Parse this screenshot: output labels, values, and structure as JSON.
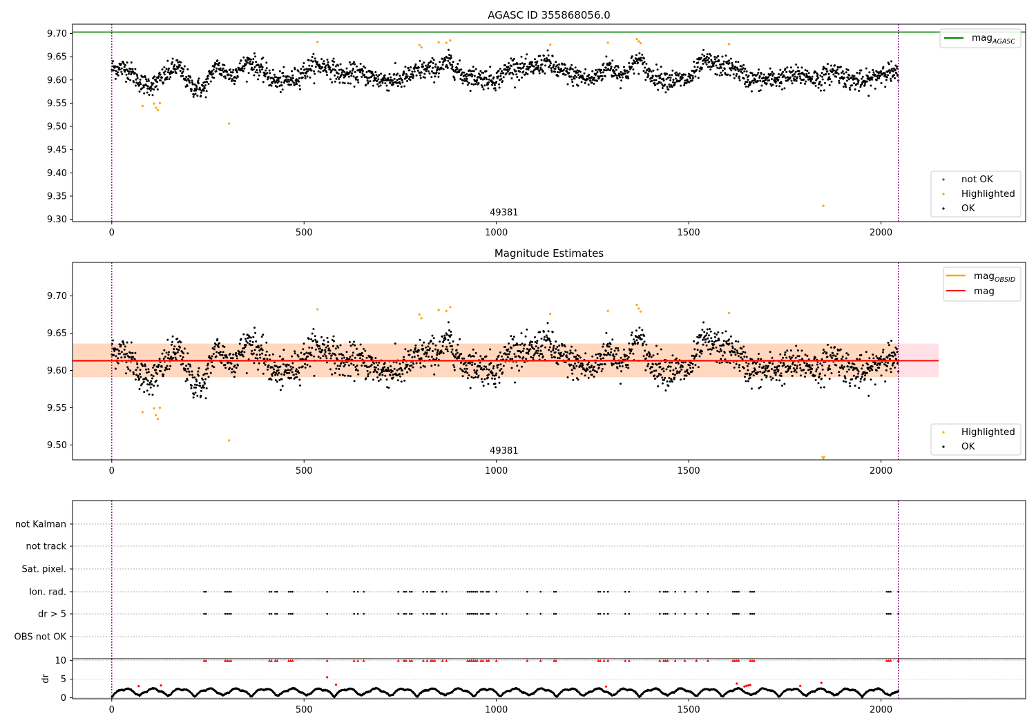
{
  "colors": {
    "ok": "#000000",
    "highlighted": "#ffa500",
    "not_ok": "#ff0000",
    "mag_agasc": "#008000",
    "mag_obsid": "#ffa500",
    "mag": "#ff0000",
    "band_obsid": "#ffd8bf",
    "band_mag": "#ffe0e6",
    "obs_boundary": "#800080"
  },
  "chart_data": [
    {
      "type": "scatter",
      "title": "AGASC ID 355868056.0",
      "xlim": [
        -102,
        2376
      ],
      "ylim": [
        9.295,
        9.72
      ],
      "xticks": [
        0,
        500,
        1000,
        1500,
        2000
      ],
      "yticks": [
        "9.70",
        "9.65",
        "9.60",
        "9.55",
        "9.50",
        "9.45",
        "9.40",
        "9.35",
        "9.30"
      ],
      "obsid_label": "49381",
      "obsid_label_x": 1020,
      "obs_boundaries": [
        0,
        2045
      ],
      "reference_line": {
        "name": "mag_AGASC",
        "label_main": "mag",
        "label_sub": "AGASC",
        "y": 9.703,
        "x_range": [
          -102,
          2376
        ]
      },
      "legend": {
        "placement_lines": "upper-right",
        "placement_points": "lower-right",
        "entries": [
          "not OK",
          "Highlighted",
          "OK"
        ]
      },
      "series": [
        {
          "name": "OK",
          "n_points": 2040,
          "x_range": [
            0,
            2045
          ],
          "baseline": 9.61,
          "trend_knots": [
            [
              0,
              9.625
            ],
            [
              40,
              9.625
            ],
            [
              80,
              9.59
            ],
            [
              110,
              9.59
            ],
            [
              140,
              9.61
            ],
            [
              170,
              9.63
            ],
            [
              210,
              9.585
            ],
            [
              240,
              9.58
            ],
            [
              270,
              9.63
            ],
            [
              310,
              9.61
            ],
            [
              360,
              9.64
            ],
            [
              390,
              9.62
            ],
            [
              430,
              9.595
            ],
            [
              470,
              9.6
            ],
            [
              520,
              9.63
            ],
            [
              560,
              9.63
            ],
            [
              600,
              9.61
            ],
            [
              640,
              9.615
            ],
            [
              700,
              9.6
            ],
            [
              750,
              9.6
            ],
            [
              800,
              9.62
            ],
            [
              850,
              9.625
            ],
            [
              880,
              9.64
            ],
            [
              910,
              9.61
            ],
            [
              960,
              9.605
            ],
            [
              1000,
              9.6
            ],
            [
              1040,
              9.63
            ],
            [
              1080,
              9.62
            ],
            [
              1130,
              9.64
            ],
            [
              1160,
              9.62
            ],
            [
              1200,
              9.61
            ],
            [
              1250,
              9.6
            ],
            [
              1290,
              9.63
            ],
            [
              1330,
              9.61
            ],
            [
              1370,
              9.645
            ],
            [
              1400,
              9.61
            ],
            [
              1450,
              9.6
            ],
            [
              1500,
              9.6
            ],
            [
              1540,
              9.64
            ],
            [
              1580,
              9.63
            ],
            [
              1620,
              9.625
            ],
            [
              1660,
              9.6
            ],
            [
              1700,
              9.6
            ],
            [
              1750,
              9.605
            ],
            [
              1800,
              9.61
            ],
            [
              1840,
              9.6
            ],
            [
              1880,
              9.62
            ],
            [
              1920,
              9.6
            ],
            [
              1960,
              9.595
            ],
            [
              2010,
              9.62
            ],
            [
              2045,
              9.61
            ]
          ],
          "scatter_sd": 0.011
        },
        {
          "name": "Highlighted",
          "points": [
            [
              80,
              9.544
            ],
            [
              110,
              9.549
            ],
            [
              115,
              9.54
            ],
            [
              120,
              9.535
            ],
            [
              125,
              9.55
            ],
            [
              305,
              9.506
            ],
            [
              535,
              9.682
            ],
            [
              800,
              9.675
            ],
            [
              805,
              9.67
            ],
            [
              850,
              9.681
            ],
            [
              870,
              9.68
            ],
            [
              880,
              9.685
            ],
            [
              1140,
              9.676
            ],
            [
              1290,
              9.68
            ],
            [
              1365,
              9.688
            ],
            [
              1370,
              9.683
            ],
            [
              1375,
              9.679
            ],
            [
              1605,
              9.677
            ],
            [
              1850,
              9.329
            ]
          ]
        },
        {
          "name": "not OK",
          "points": []
        }
      ]
    },
    {
      "type": "scatter",
      "title": "Magnitude Estimates",
      "xlim": [
        -102,
        2376
      ],
      "ylim": [
        9.48,
        9.745
      ],
      "xticks": [
        0,
        500,
        1000,
        1500,
        2000
      ],
      "yticks": [
        "9.70",
        "9.65",
        "9.60",
        "9.55",
        "9.50"
      ],
      "obsid_label": "49381",
      "obsid_label_x": 1020,
      "obs_boundaries": [
        0,
        2045
      ],
      "bands": [
        {
          "name": "mag_band",
          "y_range": [
            9.591,
            9.636
          ],
          "x_range": [
            -102,
            2150
          ]
        },
        {
          "name": "mag_OBSID_band",
          "y_range": [
            9.591,
            9.636
          ],
          "x_range": [
            -102,
            2045
          ]
        }
      ],
      "lines": [
        {
          "name": "mag_OBSID",
          "label_main": "mag",
          "label_sub": "OBSID",
          "y": 9.613,
          "x_range": [
            -102,
            2045
          ]
        },
        {
          "name": "mag",
          "label_main": "mag",
          "y": 9.613,
          "x_range": [
            -102,
            2150
          ]
        }
      ],
      "offscale_marker": {
        "x": 1850,
        "y": 9.482,
        "name": "Highlighted"
      },
      "legend": {
        "placement_lines": "upper-right",
        "placement_points": "lower-right",
        "entries": [
          "Highlighted",
          "OK"
        ]
      }
    },
    {
      "type": "scatter",
      "xlim": [
        -102,
        2376
      ],
      "xticks": [
        0,
        500,
        1000,
        1500,
        2000
      ],
      "obs_boundaries": [
        0,
        2045
      ],
      "flag_rows": [
        "not Kalman",
        "not track",
        "Sat. pixel.",
        "Ion. rad.",
        "dr > 5",
        "OBS not OK"
      ],
      "flag_marks": {
        "Ion. rad.": [
          240,
          245,
          295,
          300,
          305,
          310,
          410,
          415,
          425,
          430,
          460,
          465,
          470,
          560,
          630,
          640,
          655,
          745,
          760,
          765,
          775,
          780,
          810,
          820,
          830,
          835,
          840,
          860,
          870,
          925,
          930,
          935,
          940,
          945,
          950,
          960,
          965,
          975,
          980,
          1000,
          1080,
          1115,
          1150,
          1155,
          1265,
          1270,
          1280,
          1290,
          1335,
          1345,
          1425,
          1435,
          1440,
          1445,
          1465,
          1490,
          1520,
          1550,
          1615,
          1620,
          1625,
          1630,
          1660,
          1665,
          1670,
          2015,
          2020,
          2025,
          2045
        ],
        "dr > 5": [
          240,
          245,
          295,
          300,
          305,
          310,
          410,
          415,
          425,
          430,
          460,
          465,
          470,
          560,
          630,
          640,
          655,
          745,
          760,
          765,
          775,
          780,
          810,
          820,
          830,
          835,
          840,
          860,
          870,
          925,
          930,
          935,
          940,
          945,
          950,
          960,
          965,
          975,
          980,
          1000,
          1080,
          1115,
          1150,
          1155,
          1265,
          1270,
          1280,
          1290,
          1335,
          1345,
          1425,
          1435,
          1440,
          1445,
          1465,
          1490,
          1520,
          1550,
          1615,
          1620,
          1625,
          1630,
          1660,
          1665,
          1670,
          2015,
          2020,
          2025,
          2045
        ]
      },
      "dr": {
        "ylabel": "dr",
        "ylim": [
          -0.3,
          10.5
        ],
        "yticks": [
          "0",
          "5",
          "10"
        ],
        "n_points": 2040,
        "clip_value": 10,
        "not_ok_points": [
          [
            70,
            3.1
          ],
          [
            128,
            3.3
          ],
          [
            560,
            5.5
          ],
          [
            583,
            3.5
          ],
          [
            1285,
            3.0
          ],
          [
            1625,
            3.8
          ],
          [
            1645,
            3.0
          ],
          [
            1650,
            3.2
          ],
          [
            1655,
            3.3
          ],
          [
            1660,
            3.4
          ],
          [
            1790,
            3.2
          ],
          [
            1845,
            4.0
          ]
        ]
      }
    }
  ]
}
